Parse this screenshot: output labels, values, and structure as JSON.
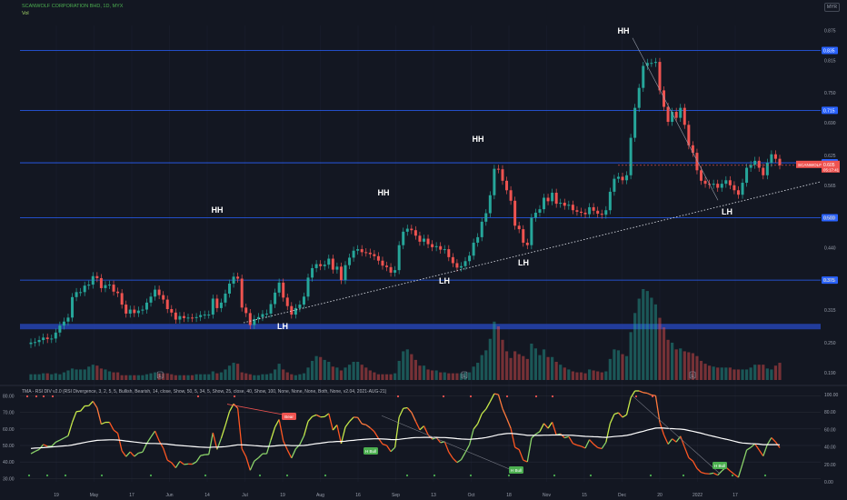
{
  "header": {
    "title": "SCANWOLF CORPORATION BHD, 1D, MYX",
    "volume_label": "Vol",
    "currency_badge": "MYR"
  },
  "indicator": {
    "title": "TMA - RSI DIV v2.0 (RSI Divergence, 3, 2, 5, 5, Bullish, Bearish, 14, close, Show, 50, 5, 34, 5, Show, 25, close, 40, Show, 100, None, None, None, Both, None, v2.04, 2021-AUG-21)"
  },
  "colors": {
    "background": "#131722",
    "up": "#26a69a",
    "down": "#ef5350",
    "level_line": "#2962ff",
    "support_band": "#2540a8",
    "annotation": "#ffffff",
    "rsi_white": "#ffffff",
    "bull_label": "#4caf50",
    "bear_label": "#ef5350"
  },
  "chart_data": [
    {
      "type": "candlestick",
      "title": "SCANWOLF CORPORATION BHD, 1D, MYX",
      "x_ticks": [
        "19",
        "May",
        "17",
        "Jun",
        "14",
        "Jul",
        "19",
        "Aug",
        "16",
        "Sep",
        "13",
        "Oct",
        "18",
        "Nov",
        "15",
        "Dec",
        "20",
        "2022",
        "17"
      ],
      "y_ticks": [
        "0.875",
        "0.815",
        "0.750",
        "0.690",
        "0.625",
        "0.565",
        "0.500",
        "0.440",
        "0.375",
        "0.315",
        "0.250",
        "0.190"
      ],
      "ylim": [
        0.175,
        0.885
      ],
      "horizontal_levels": [
        "0.835",
        "0.715",
        "0.610",
        "0.500",
        "0.375"
      ],
      "support_band": 0.282,
      "last_price": {
        "label": "SCANWOLF",
        "value": "0.605",
        "countdown": "05:17:41"
      },
      "annotations": [
        "HH",
        "HH",
        "HH",
        "HH",
        "LH",
        "LH",
        "LH",
        "LH"
      ],
      "volume_markers": [
        "E",
        "E",
        "E"
      ],
      "series": [
        {
          "name": "price",
          "close": [
            0.25,
            0.251,
            0.255,
            0.26,
            0.257,
            0.258,
            0.27,
            0.284,
            0.292,
            0.3,
            0.341,
            0.351,
            0.351,
            0.364,
            0.366,
            0.383,
            0.379,
            0.359,
            0.365,
            0.366,
            0.352,
            0.349,
            0.326,
            0.308,
            0.316,
            0.309,
            0.314,
            0.316,
            0.33,
            0.342,
            0.356,
            0.345,
            0.336,
            0.317,
            0.31,
            0.296,
            0.303,
            0.299,
            0.3,
            0.299,
            0.301,
            0.305,
            0.306,
            0.306,
            0.338,
            0.319,
            0.33,
            0.348,
            0.368,
            0.382,
            0.378,
            0.32,
            0.309,
            0.285,
            0.297,
            0.301,
            0.307,
            0.308,
            0.327,
            0.35,
            0.37,
            0.34,
            0.323,
            0.306,
            0.319,
            0.326,
            0.342,
            0.38,
            0.399,
            0.407,
            0.403,
            0.406,
            0.418,
            0.396,
            0.402,
            0.375,
            0.405,
            0.42,
            0.434,
            0.437,
            0.431,
            0.43,
            0.427,
            0.423,
            0.414,
            0.404,
            0.401,
            0.39,
            0.395,
            0.445,
            0.472,
            0.478,
            0.475,
            0.464,
            0.452,
            0.458,
            0.447,
            0.441,
            0.443,
            0.436,
            0.437,
            0.421,
            0.409,
            0.4,
            0.403,
            0.413,
            0.424,
            0.45,
            0.461,
            0.492,
            0.509,
            0.545,
            0.598,
            0.597,
            0.574,
            0.555,
            0.534,
            0.484,
            0.477,
            0.45,
            0.445,
            0.5,
            0.51,
            0.517,
            0.54,
            0.533,
            0.55,
            0.528,
            0.53,
            0.524,
            0.526,
            0.515,
            0.512,
            0.51,
            0.507,
            0.521,
            0.514,
            0.508,
            0.506,
            0.515,
            0.552,
            0.578,
            0.582,
            0.575,
            0.585,
            0.66,
            0.72,
            0.76,
            0.804,
            0.81,
            0.81,
            0.812,
            0.755,
            0.722,
            0.692,
            0.712,
            0.7,
            0.72,
            0.686,
            0.645,
            0.63,
            0.595,
            0.574,
            0.568,
            0.566,
            0.568,
            0.56,
            0.568,
            0.575,
            0.565,
            0.555,
            0.546,
            0.57,
            0.6,
            0.606,
            0.614,
            0.6,
            0.585,
            0.61,
            0.627,
            0.618,
            0.605
          ]
        },
        {
          "name": "volume",
          "values": [
            6,
            6,
            6,
            7,
            7,
            6,
            7,
            6,
            8,
            10,
            12,
            11,
            11,
            11,
            14,
            16,
            15,
            12,
            11,
            9,
            8,
            8,
            5,
            5,
            5,
            5,
            5,
            5,
            6,
            7,
            8,
            7,
            7,
            7,
            6,
            5,
            5,
            5,
            5,
            5,
            6,
            6,
            6,
            6,
            9,
            7,
            8,
            11,
            15,
            18,
            17,
            8,
            7,
            6,
            5,
            5,
            6,
            6,
            7,
            11,
            17,
            11,
            8,
            6,
            5,
            6,
            7,
            13,
            20,
            25,
            24,
            21,
            19,
            14,
            13,
            10,
            13,
            16,
            19,
            19,
            16,
            13,
            10,
            8,
            6,
            6,
            6,
            6,
            7,
            20,
            30,
            32,
            27,
            21,
            15,
            15,
            11,
            10,
            10,
            8,
            8,
            7,
            7,
            7,
            7,
            8,
            8,
            14,
            18,
            26,
            31,
            43,
            61,
            56,
            42,
            30,
            23,
            30,
            27,
            25,
            22,
            38,
            33,
            26,
            32,
            24,
            24,
            19,
            16,
            13,
            11,
            9,
            8,
            8,
            7,
            11,
            10,
            9,
            8,
            9,
            22,
            32,
            31,
            27,
            25,
            50,
            70,
            85,
            95,
            93,
            86,
            79,
            65,
            55,
            42,
            39,
            32,
            33,
            30,
            29,
            28,
            25,
            20,
            17,
            15,
            14,
            13,
            13,
            13,
            13,
            11,
            11,
            11,
            11,
            13,
            16,
            16,
            16,
            12,
            11,
            15,
            18,
            17,
            15
          ]
        }
      ]
    },
    {
      "type": "line",
      "title": "TMA - RSI DIV v2.0",
      "left_ticks": [
        "80.00",
        "70.00",
        "60.00",
        "50.00",
        "40.00",
        "30.00"
      ],
      "right_ticks": [
        "100.00",
        "80.00",
        "60.00",
        "40.00",
        "20.00",
        "0.00"
      ],
      "ylim": [
        28,
        83
      ],
      "divergence_labels": [
        "Bear",
        "H Bull",
        "H Bull",
        "H Bull"
      ],
      "series": [
        {
          "name": "rsi",
          "values": [
            45,
            46.4,
            47.6,
            50.6,
            49.5,
            49.5,
            52,
            53.2,
            54.5,
            55.8,
            64,
            70.5,
            70.8,
            73.9,
            74,
            76.7,
            72.8,
            62.9,
            64,
            64,
            59.3,
            57.4,
            46.7,
            43.3,
            46.1,
            43.4,
            45.4,
            46,
            51.2,
            55.1,
            58.7,
            52.8,
            48.3,
            41.1,
            39.6,
            36.5,
            40.4,
            38.5,
            38.8,
            38.7,
            40.1,
            43.9,
            44.4,
            44.6,
            57.7,
            47.6,
            54.3,
            62.1,
            70.5,
            75.2,
            72.5,
            48,
            43.2,
            35,
            40.6,
            42.5,
            45,
            45,
            53.3,
            61.1,
            65.7,
            52.8,
            47.3,
            42.4,
            47.9,
            50.6,
            55.8,
            64.6,
            67.5,
            68.5,
            67.2,
            67.4,
            69.3,
            59.3,
            62.4,
            51.1,
            61.1,
            64.5,
            67.1,
            66.9,
            63.1,
            62.5,
            60.7,
            58.4,
            54.3,
            50.8,
            50,
            46.3,
            48.8,
            67.1,
            72.4,
            72.8,
            70,
            64.6,
            59.5,
            61.8,
            56.5,
            53.8,
            54.8,
            51.7,
            52.3,
            46,
            42.2,
            39.7,
            41.4,
            45.8,
            50.4,
            59.9,
            63.1,
            69.2,
            72,
            76.5,
            81.3,
            80.8,
            72.3,
            66.5,
            60.4,
            48.9,
            47.5,
            41.1,
            40.1,
            54.4,
            56.8,
            58.4,
            63.3,
            60.4,
            64.1,
            56.4,
            57,
            54.6,
            55.4,
            51.2,
            50.2,
            49.5,
            48.4,
            53.5,
            50.8,
            48.7,
            48.1,
            51.9,
            63.3,
            68.9,
            69.8,
            67.1,
            68.6,
            78.9,
            83,
            83,
            82,
            81.6,
            80.5,
            80.1,
            64.1,
            56.4,
            50.8,
            54,
            52.1,
            55.6,
            49,
            42.6,
            40.6,
            36.1,
            33.7,
            33,
            32.8,
            33.3,
            32,
            34.6,
            36.8,
            34.6,
            32.6,
            30.7,
            38.8,
            47.2,
            48.8,
            51,
            47.3,
            43.6,
            50.6,
            54.7,
            52.1,
            48.6
          ]
        },
        {
          "name": "ma",
          "values": [
            48.2,
            48.4,
            48.5,
            48.7,
            48.9,
            49.1,
            49.3,
            49.5,
            49.7,
            49.9,
            50.3,
            50.8,
            51.3,
            51.8,
            52.3,
            52.7,
            53.1,
            53.2,
            53.3,
            53.4,
            53.4,
            53.3,
            53,
            52.7,
            52.4,
            52.1,
            51.8,
            51.5,
            51.3,
            51.2,
            51.2,
            51.1,
            51,
            50.8,
            50.5,
            50.2,
            50,
            49.8,
            49.6,
            49.4,
            49.2,
            49,
            48.9,
            48.8,
            49,
            49,
            49.1,
            49.3,
            49.6,
            50,
            50.4,
            50.4,
            50.3,
            50.1,
            49.9,
            49.7,
            49.5,
            49.4,
            49.5,
            49.7,
            50,
            50.1,
            50.1,
            49.9,
            49.9,
            49.9,
            50,
            50.3,
            50.7,
            51.1,
            51.4,
            51.7,
            52.1,
            52.2,
            52.4,
            52.4,
            52.6,
            52.9,
            53.1,
            53.4,
            53.6,
            53.8,
            53.9,
            54,
            54,
            53.9,
            53.8,
            53.6,
            53.5,
            53.7,
            54,
            54.3,
            54.6,
            54.8,
            54.8,
            54.9,
            54.9,
            54.9,
            54.9,
            54.8,
            54.8,
            54.6,
            54.4,
            54.1,
            53.9,
            53.8,
            53.7,
            53.9,
            54.1,
            54.4,
            54.8,
            55.3,
            55.9,
            56.5,
            56.9,
            57.2,
            57.3,
            57.1,
            56.8,
            56.5,
            56.1,
            56.1,
            56.1,
            56.1,
            56.2,
            56.2,
            56.3,
            56.3,
            56.3,
            56.2,
            56.2,
            56.1,
            55.9,
            55.7,
            55.5,
            55.4,
            55.3,
            55.2,
            55,
            54.9,
            55.1,
            55.4,
            55.6,
            55.8,
            56.1,
            56.6,
            57.3,
            58,
            58.6,
            59.3,
            59.9,
            60.5,
            60.6,
            60.5,
            60.3,
            60.2,
            60,
            59.9,
            59.6,
            59.1,
            58.6,
            58,
            57.4,
            56.7,
            56.1,
            55.5,
            54.9,
            54.3,
            53.8,
            53.2,
            52.6,
            51.9,
            51.5,
            51.3,
            51.1,
            51,
            50.8,
            50.5,
            50.5,
            50.5,
            50.5,
            50.4
          ]
        }
      ]
    }
  ]
}
